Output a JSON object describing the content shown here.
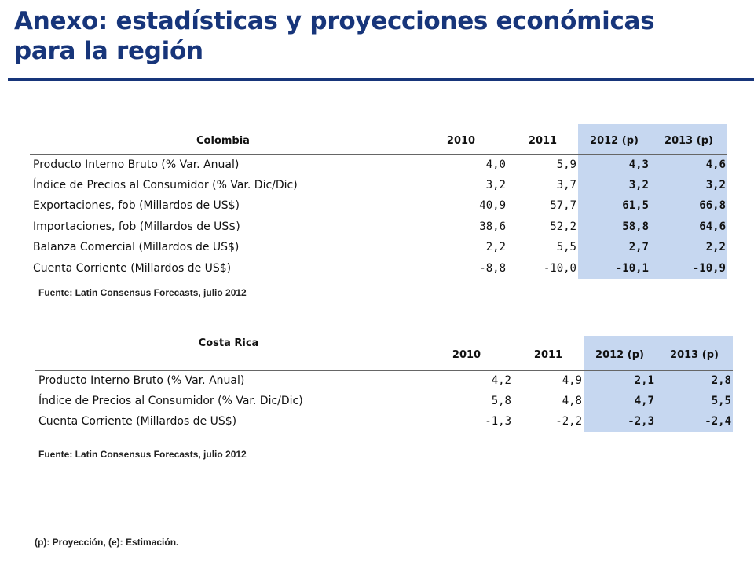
{
  "title": {
    "line1": "Anexo: estadísticas y proyecciones económicas",
    "line2": "para la región"
  },
  "tables": [
    {
      "country": "Colombia",
      "columns": [
        "2010",
        "2011",
        "2012 (p)",
        "2013 (p)"
      ],
      "rows": [
        {
          "label": "Producto Interno Bruto (% Var. Anual)",
          "values": [
            "4,0",
            "5,9",
            "4,3",
            "4,6"
          ]
        },
        {
          "label": "Índice de Precios al Consumidor (% Var. Dic/Dic)",
          "values": [
            "3,2",
            "3,7",
            "3,2",
            "3,2"
          ]
        },
        {
          "label": "Exportaciones, fob (Millardos de US$)",
          "values": [
            "40,9",
            "57,7",
            "61,5",
            "66,8"
          ]
        },
        {
          "label": "Importaciones, fob (Millardos de US$)",
          "values": [
            "38,6",
            "52,2",
            "58,8",
            "64,6"
          ]
        },
        {
          "label": "Balanza Comercial (Millardos de US$)",
          "values": [
            "2,2",
            "5,5",
            "2,7",
            "2,2"
          ]
        },
        {
          "label": "Cuenta Corriente (Millardos de US$)",
          "values": [
            "-8,8",
            "-10,0",
            "-10,1",
            "-10,9"
          ]
        }
      ],
      "source": "Fuente: Latin Consensus Forecasts, julio 2012"
    },
    {
      "country": "Costa Rica",
      "columns": [
        "2010",
        "2011",
        "2012 (p)",
        "2013 (p)"
      ],
      "rows": [
        {
          "label": "Producto Interno Bruto (% Var. Anual)",
          "values": [
            "4,2",
            "4,9",
            "2,1",
            "2,8"
          ]
        },
        {
          "label": "Índice de Precios al Consumidor (% Var. Dic/Dic)",
          "values": [
            "5,8",
            "4,8",
            "4,7",
            "5,5"
          ]
        },
        {
          "label": "Cuenta Corriente (Millardos de US$)",
          "values": [
            "-1,3",
            "-2,2",
            "-2,3",
            "-2,4"
          ]
        }
      ],
      "source": "Fuente: Latin Consensus Forecasts, julio 2012"
    }
  ],
  "footnote": "(p): Proyección, (e): Estimación.",
  "colors": {
    "title": "#17357a",
    "projection_fill": "#c6d7f0"
  }
}
